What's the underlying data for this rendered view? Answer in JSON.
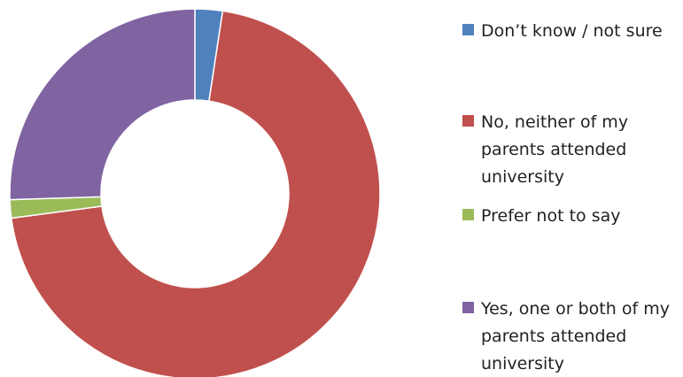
{
  "chart_data": {
    "type": "donut",
    "title": "",
    "legend_position": "right",
    "slices": [
      {
        "label": "Don’t know / not sure",
        "value": 2.4,
        "color": "#4F81BD"
      },
      {
        "label": "No, neither of my\nparents attended\nuniversity",
        "value": 70.5,
        "color": "#C0504D"
      },
      {
        "label": "Prefer not to say",
        "value": 1.6,
        "color": "#9BBB59"
      },
      {
        "label": "Yes, one or both of my\nparents attended\nuniversity",
        "value": 25.5,
        "color": "#8064A2"
      }
    ]
  }
}
